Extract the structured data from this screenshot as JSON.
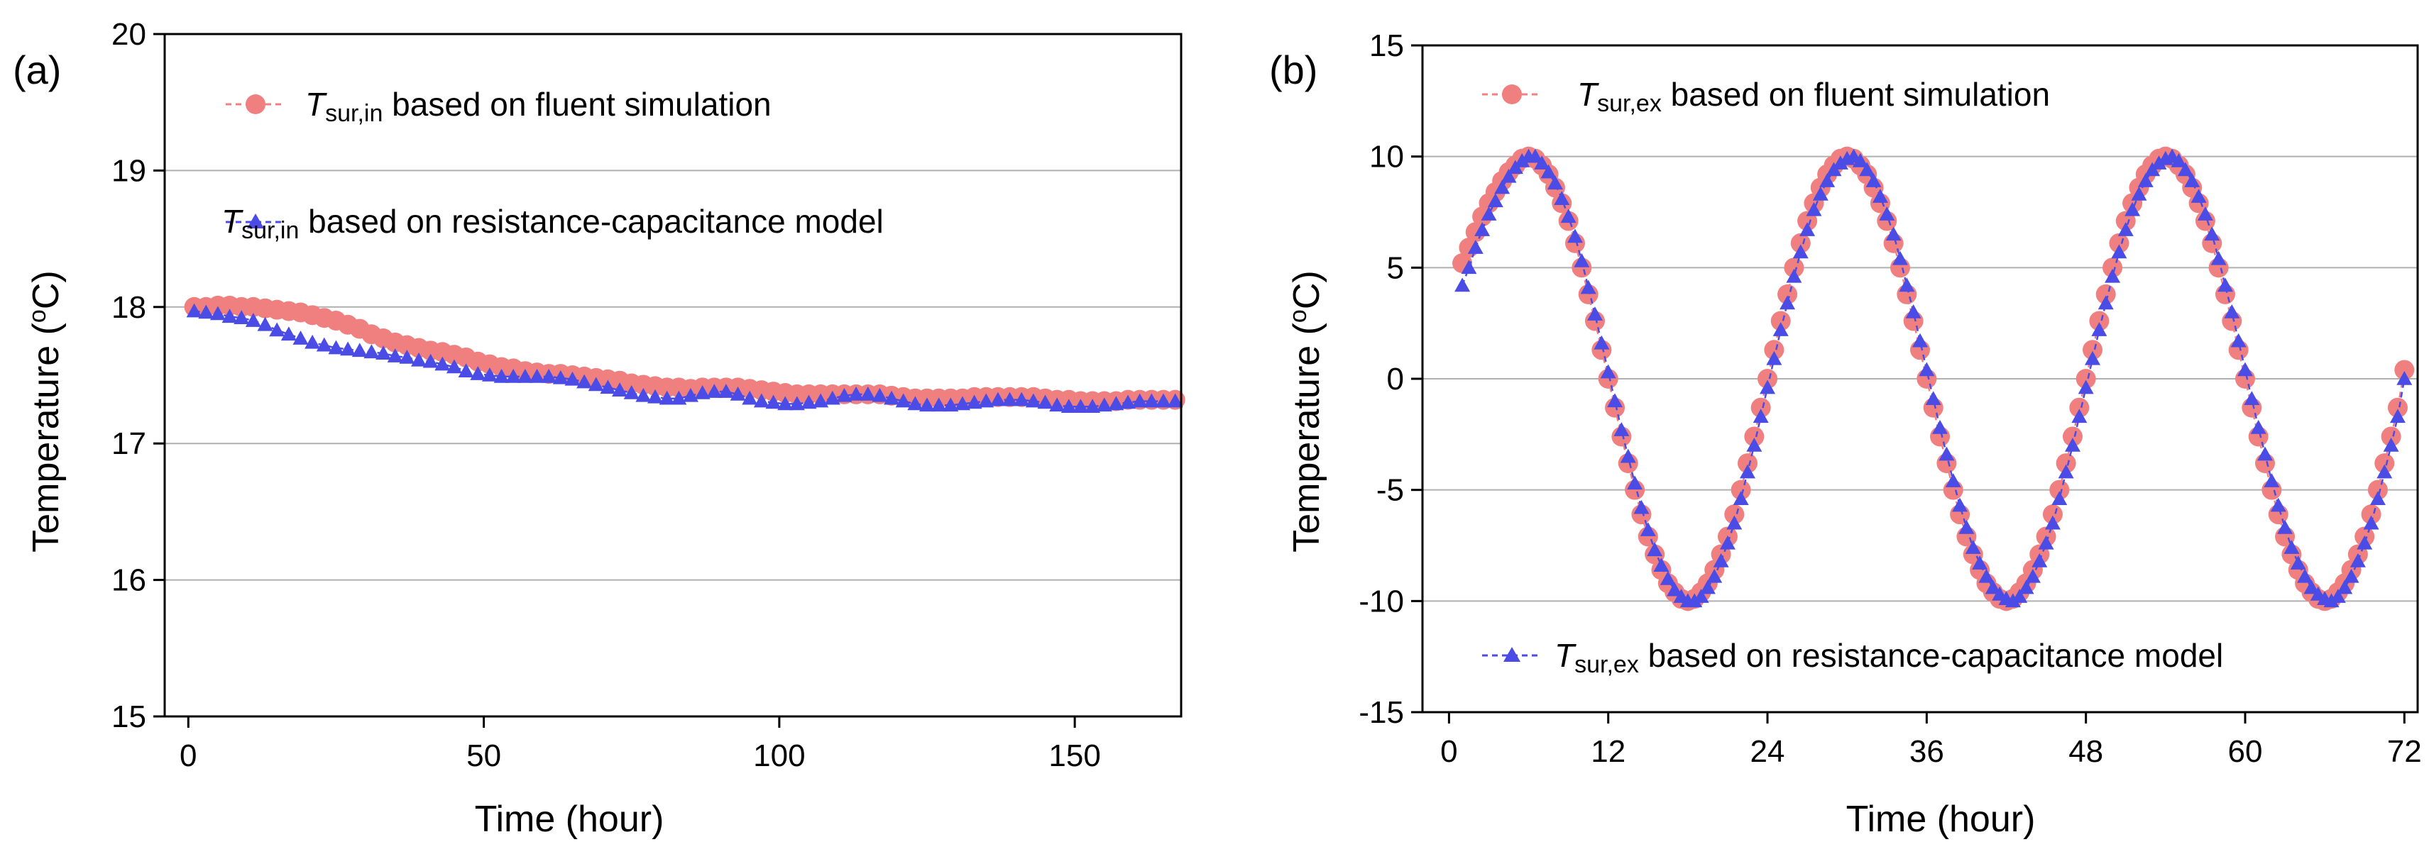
{
  "colors": {
    "fluent": "#F08080",
    "rc": "#4B4BE6",
    "grid": "#B0B0B0",
    "axis": "#000000"
  },
  "chart_data": [
    {
      "panel_label": "(a)",
      "type": "line",
      "xlabel": "Time (hour)",
      "ylabel": "Temperature (",
      "ylabel_sup": "o",
      "ylabel_tail": "C)",
      "xlim": [
        -4,
        168
      ],
      "ylim": [
        15,
        20
      ],
      "xticks": [
        0,
        50,
        100,
        150
      ],
      "yticks": [
        15,
        16,
        17,
        18,
        19,
        20
      ],
      "grid_y": [
        16,
        17,
        18,
        19
      ],
      "legend": [
        {
          "symbol": "T",
          "subscript": "sur,in",
          "text": " based on fluent simulation",
          "series": 0
        },
        {
          "symbol": "T",
          "subscript": "sur,in",
          "text": " based on resistance-capacitance model",
          "series": 1
        }
      ],
      "series": [
        {
          "name": "fluent simulation",
          "marker": "circle",
          "x": [
            1,
            3,
            5,
            7,
            9,
            11,
            13,
            15,
            17,
            19,
            21,
            23,
            25,
            27,
            29,
            31,
            33,
            35,
            37,
            39,
            41,
            43,
            45,
            47,
            49,
            51,
            53,
            55,
            57,
            59,
            61,
            63,
            65,
            67,
            69,
            71,
            73,
            75,
            77,
            79,
            81,
            83,
            85,
            87,
            89,
            91,
            93,
            95,
            97,
            99,
            101,
            103,
            105,
            107,
            109,
            111,
            113,
            115,
            117,
            119,
            121,
            123,
            125,
            127,
            129,
            131,
            133,
            135,
            137,
            139,
            141,
            143,
            145,
            147,
            149,
            151,
            153,
            155,
            157,
            159,
            161,
            163,
            165,
            167
          ],
          "y": [
            18.0,
            18.0,
            18.01,
            18.01,
            18.0,
            18.0,
            17.99,
            17.98,
            17.97,
            17.96,
            17.94,
            17.92,
            17.9,
            17.87,
            17.84,
            17.8,
            17.77,
            17.74,
            17.72,
            17.7,
            17.68,
            17.67,
            17.65,
            17.63,
            17.6,
            17.58,
            17.56,
            17.55,
            17.53,
            17.52,
            17.51,
            17.51,
            17.5,
            17.49,
            17.48,
            17.47,
            17.46,
            17.44,
            17.43,
            17.42,
            17.41,
            17.41,
            17.4,
            17.41,
            17.41,
            17.41,
            17.41,
            17.4,
            17.39,
            17.38,
            17.37,
            17.36,
            17.36,
            17.36,
            17.36,
            17.36,
            17.36,
            17.36,
            17.36,
            17.35,
            17.34,
            17.33,
            17.33,
            17.33,
            17.33,
            17.33,
            17.34,
            17.34,
            17.34,
            17.34,
            17.34,
            17.34,
            17.33,
            17.32,
            17.32,
            17.31,
            17.31,
            17.31,
            17.31,
            17.32,
            17.32,
            17.32,
            17.32,
            17.32
          ]
        },
        {
          "name": "resistance-capacitance model",
          "marker": "triangle",
          "x": [
            1,
            3,
            5,
            7,
            9,
            11,
            13,
            15,
            17,
            19,
            21,
            23,
            25,
            27,
            29,
            31,
            33,
            35,
            37,
            39,
            41,
            43,
            45,
            47,
            49,
            51,
            53,
            55,
            57,
            59,
            61,
            63,
            65,
            67,
            69,
            71,
            73,
            75,
            77,
            79,
            81,
            83,
            85,
            87,
            89,
            91,
            93,
            95,
            97,
            99,
            101,
            103,
            105,
            107,
            109,
            111,
            113,
            115,
            117,
            119,
            121,
            123,
            125,
            127,
            129,
            131,
            133,
            135,
            137,
            139,
            141,
            143,
            145,
            147,
            149,
            151,
            153,
            155,
            157,
            159,
            161,
            163,
            165,
            167
          ],
          "y": [
            17.97,
            17.96,
            17.95,
            17.93,
            17.92,
            17.9,
            17.87,
            17.83,
            17.8,
            17.77,
            17.74,
            17.72,
            17.7,
            17.69,
            17.68,
            17.67,
            17.66,
            17.64,
            17.63,
            17.61,
            17.6,
            17.58,
            17.56,
            17.53,
            17.51,
            17.5,
            17.49,
            17.49,
            17.49,
            17.49,
            17.49,
            17.48,
            17.47,
            17.45,
            17.43,
            17.41,
            17.39,
            17.37,
            17.35,
            17.34,
            17.33,
            17.33,
            17.35,
            17.37,
            17.38,
            17.38,
            17.36,
            17.33,
            17.31,
            17.3,
            17.29,
            17.29,
            17.3,
            17.31,
            17.33,
            17.35,
            17.36,
            17.36,
            17.35,
            17.33,
            17.31,
            17.29,
            17.28,
            17.28,
            17.28,
            17.29,
            17.3,
            17.31,
            17.32,
            17.32,
            17.32,
            17.31,
            17.3,
            17.28,
            17.27,
            17.27,
            17.27,
            17.28,
            17.29,
            17.3,
            17.31,
            17.31,
            17.31,
            17.31
          ]
        }
      ]
    },
    {
      "panel_label": "(b)",
      "type": "line",
      "xlabel": "Time (hour)",
      "ylabel": "Temperature (",
      "ylabel_sup": "o",
      "ylabel_tail": "C)",
      "xlim": [
        -2,
        73
      ],
      "ylim": [
        -15,
        15
      ],
      "xticks": [
        0,
        12,
        24,
        36,
        48,
        60,
        72
      ],
      "yticks": [
        -15,
        -10,
        -5,
        0,
        5,
        10,
        15
      ],
      "grid_y": [
        -10,
        -5,
        0,
        5,
        10
      ],
      "legend": [
        {
          "symbol": "T",
          "subscript": "sur,ex",
          "text": " based on fluent simulation",
          "series": 0
        },
        {
          "symbol": "T",
          "subscript": "sur,ex",
          "text": " based on resistance-capacitance model",
          "series": 1
        }
      ],
      "series": [
        {
          "name": "fluent simulation",
          "marker": "circle",
          "x": [
            1,
            1.5,
            2,
            2.5,
            3,
            3.5,
            4,
            4.5,
            5,
            5.5,
            6,
            6.5,
            7,
            7.5,
            8,
            8.5,
            9,
            9.5,
            10,
            10.5,
            11,
            11.5,
            12,
            12.5,
            13,
            13.5,
            14,
            14.5,
            15,
            15.5,
            16,
            16.5,
            17,
            17.5,
            18,
            18.5,
            19,
            19.5,
            20,
            20.5,
            21,
            21.5,
            22,
            22.5,
            23,
            23.5,
            24,
            24.5,
            25,
            25.5,
            26,
            26.5,
            27,
            27.5,
            28,
            28.5,
            29,
            29.5,
            30,
            30.5,
            31,
            31.5,
            32,
            32.5,
            33,
            33.5,
            34,
            34.5,
            35,
            35.5,
            36,
            36.5,
            37,
            37.5,
            38,
            38.5,
            39,
            39.5,
            40,
            40.5,
            41,
            41.5,
            42,
            42.5,
            43,
            43.5,
            44,
            44.5,
            45,
            45.5,
            46,
            46.5,
            47,
            47.5,
            48,
            48.5,
            49,
            49.5,
            50,
            50.5,
            51,
            51.5,
            52,
            52.5,
            53,
            53.5,
            54,
            54.5,
            55,
            55.5,
            56,
            56.5,
            57,
            57.5,
            58,
            58.5,
            59,
            59.5,
            60,
            60.5,
            61,
            61.5,
            62,
            62.5,
            63,
            63.5,
            64,
            64.5,
            65,
            65.5,
            66,
            66.5,
            67,
            67.5,
            68,
            68.5,
            69,
            69.5,
            70,
            70.5,
            71,
            71.5,
            72
          ],
          "y": [
            5.2,
            5.9,
            6.6,
            7.3,
            7.9,
            8.4,
            8.9,
            9.3,
            9.6,
            9.9,
            10.0,
            9.9,
            9.6,
            9.2,
            8.6,
            7.9,
            7.1,
            6.1,
            5.0,
            3.8,
            2.6,
            1.3,
            0.0,
            -1.3,
            -2.6,
            -3.8,
            -5.0,
            -6.1,
            -7.1,
            -7.9,
            -8.6,
            -9.2,
            -9.6,
            -9.9,
            -10.0,
            -9.9,
            -9.6,
            -9.2,
            -8.6,
            -7.9,
            -7.1,
            -6.1,
            -5.0,
            -3.8,
            -2.6,
            -1.3,
            0.0,
            1.3,
            2.6,
            3.8,
            5.0,
            6.1,
            7.1,
            7.9,
            8.6,
            9.2,
            9.6,
            9.9,
            10.0,
            9.9,
            9.6,
            9.2,
            8.6,
            7.9,
            7.1,
            6.1,
            5.0,
            3.8,
            2.6,
            1.3,
            0.0,
            -1.3,
            -2.6,
            -3.8,
            -5.0,
            -6.1,
            -7.1,
            -7.9,
            -8.6,
            -9.2,
            -9.6,
            -9.9,
            -10.0,
            -9.9,
            -9.6,
            -9.2,
            -8.6,
            -7.9,
            -7.1,
            -6.1,
            -5.0,
            -3.8,
            -2.6,
            -1.3,
            0.0,
            1.3,
            2.6,
            3.8,
            5.0,
            6.1,
            7.1,
            7.9,
            8.6,
            9.2,
            9.6,
            9.9,
            10.0,
            9.9,
            9.6,
            9.2,
            8.6,
            7.9,
            7.1,
            6.1,
            5.0,
            3.8,
            2.6,
            1.3,
            0.0,
            -1.3,
            -2.6,
            -3.8,
            -5.0,
            -6.1,
            -7.1,
            -7.9,
            -8.6,
            -9.2,
            -9.6,
            -9.9,
            -10.0,
            -9.9,
            -9.6,
            -9.2,
            -8.6,
            -7.9,
            -7.1,
            -6.1,
            -5.0,
            -3.8,
            -2.6,
            -1.3,
            0.4
          ]
        },
        {
          "name": "resistance-capacitance model",
          "marker": "triangle",
          "x": [
            1,
            1.5,
            2,
            2.5,
            3,
            3.5,
            4,
            4.5,
            5,
            5.5,
            6,
            6.5,
            7,
            7.5,
            8,
            8.5,
            9,
            9.5,
            10,
            10.5,
            11,
            11.5,
            12,
            12.5,
            13,
            13.5,
            14,
            14.5,
            15,
            15.5,
            16,
            16.5,
            17,
            17.5,
            18,
            18.5,
            19,
            19.5,
            20,
            20.5,
            21,
            21.5,
            22,
            22.5,
            23,
            23.5,
            24,
            24.5,
            25,
            25.5,
            26,
            26.5,
            27,
            27.5,
            28,
            28.5,
            29,
            29.5,
            30,
            30.5,
            31,
            31.5,
            32,
            32.5,
            33,
            33.5,
            34,
            34.5,
            35,
            35.5,
            36,
            36.5,
            37,
            37.5,
            38,
            38.5,
            39,
            39.5,
            40,
            40.5,
            41,
            41.5,
            42,
            42.5,
            43,
            43.5,
            44,
            44.5,
            45,
            45.5,
            46,
            46.5,
            47,
            47.5,
            48,
            48.5,
            49,
            49.5,
            50,
            50.5,
            51,
            51.5,
            52,
            52.5,
            53,
            53.5,
            54,
            54.5,
            55,
            55.5,
            56,
            56.5,
            57,
            57.5,
            58,
            58.5,
            59,
            59.5,
            60,
            60.5,
            61,
            61.5,
            62,
            62.5,
            63,
            63.5,
            64,
            64.5,
            65,
            65.5,
            66,
            66.5,
            67,
            67.5,
            68,
            68.5,
            69,
            69.5,
            70,
            70.5,
            71,
            71.5,
            72
          ],
          "y": [
            4.2,
            5.0,
            5.9,
            6.7,
            7.4,
            8.0,
            8.6,
            9.1,
            9.5,
            9.8,
            10.0,
            10.0,
            9.7,
            9.3,
            8.8,
            8.1,
            7.3,
            6.4,
            5.3,
            4.1,
            2.9,
            1.6,
            0.3,
            -1.0,
            -2.3,
            -3.5,
            -4.7,
            -5.8,
            -6.8,
            -7.7,
            -8.4,
            -9.0,
            -9.5,
            -9.8,
            -10.0,
            -10.0,
            -9.8,
            -9.4,
            -8.9,
            -8.2,
            -7.4,
            -6.5,
            -5.4,
            -4.2,
            -3.0,
            -1.7,
            -0.4,
            0.9,
            2.2,
            3.4,
            4.6,
            5.7,
            6.7,
            7.6,
            8.3,
            8.9,
            9.4,
            9.7,
            9.9,
            10.0,
            9.8,
            9.4,
            8.9,
            8.2,
            7.4,
            6.5,
            5.4,
            4.2,
            3.0,
            1.7,
            0.4,
            -0.9,
            -2.2,
            -3.4,
            -4.6,
            -5.7,
            -6.7,
            -7.6,
            -8.3,
            -8.9,
            -9.4,
            -9.7,
            -9.9,
            -10.0,
            -9.8,
            -9.4,
            -8.9,
            -8.2,
            -7.4,
            -6.5,
            -5.4,
            -4.2,
            -3.0,
            -1.7,
            -0.4,
            0.9,
            2.2,
            3.4,
            4.6,
            5.7,
            6.7,
            7.6,
            8.3,
            8.9,
            9.4,
            9.7,
            9.9,
            10.0,
            9.8,
            9.4,
            8.9,
            8.2,
            7.4,
            6.5,
            5.4,
            4.2,
            3.0,
            1.7,
            0.4,
            -0.9,
            -2.2,
            -3.4,
            -4.6,
            -5.7,
            -6.7,
            -7.6,
            -8.3,
            -8.9,
            -9.4,
            -9.7,
            -9.9,
            -10.0,
            -9.8,
            -9.4,
            -8.9,
            -8.2,
            -7.4,
            -6.5,
            -5.4,
            -4.2,
            -3.0,
            -1.7,
            0.0
          ]
        }
      ]
    }
  ]
}
